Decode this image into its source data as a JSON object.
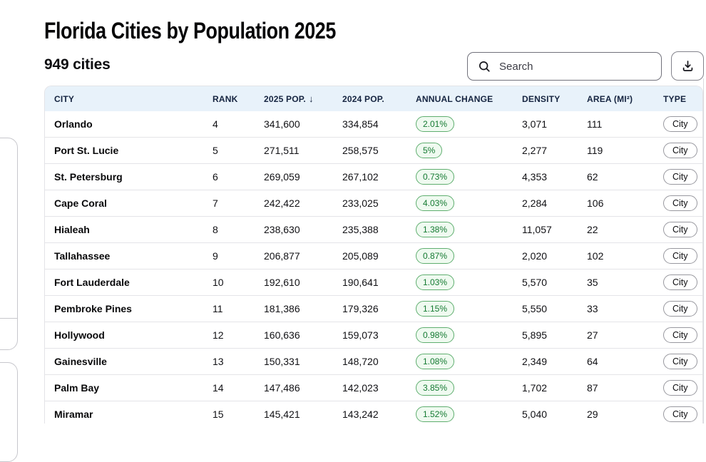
{
  "page": {
    "title": "Florida Cities by Population 2025",
    "count_label": "949 cities"
  },
  "toolbar": {
    "search_placeholder": "Search",
    "search_icon": "search-icon",
    "download_icon": "download-icon"
  },
  "colors": {
    "header_bg": "#e8f2fa",
    "header_text": "#152440",
    "badge_green_bg": "#effaf0",
    "badge_green_border": "#5fae6f",
    "badge_green_text": "#147a31",
    "row_border": "#e4e4e8",
    "type_border": "#98989f"
  },
  "table": {
    "columns": [
      "CITY",
      "RANK",
      "2025 POP.",
      "2024 POP.",
      "ANNUAL CHANGE",
      "DENSITY",
      "AREA (MI²)",
      "TYPE"
    ],
    "sort_column": "2025 POP.",
    "sort_icon": "↓",
    "rows": [
      {
        "city": "Orlando",
        "rank": "4",
        "pop2025": "341,600",
        "pop2024": "334,854",
        "change": "2.01%",
        "density": "3,071",
        "area": "111",
        "type": "City"
      },
      {
        "city": "Port St. Lucie",
        "rank": "5",
        "pop2025": "271,511",
        "pop2024": "258,575",
        "change": "5%",
        "density": "2,277",
        "area": "119",
        "type": "City"
      },
      {
        "city": "St. Petersburg",
        "rank": "6",
        "pop2025": "269,059",
        "pop2024": "267,102",
        "change": "0.73%",
        "density": "4,353",
        "area": "62",
        "type": "City"
      },
      {
        "city": "Cape Coral",
        "rank": "7",
        "pop2025": "242,422",
        "pop2024": "233,025",
        "change": "4.03%",
        "density": "2,284",
        "area": "106",
        "type": "City"
      },
      {
        "city": "Hialeah",
        "rank": "8",
        "pop2025": "238,630",
        "pop2024": "235,388",
        "change": "1.38%",
        "density": "11,057",
        "area": "22",
        "type": "City"
      },
      {
        "city": "Tallahassee",
        "rank": "9",
        "pop2025": "206,877",
        "pop2024": "205,089",
        "change": "0.87%",
        "density": "2,020",
        "area": "102",
        "type": "City"
      },
      {
        "city": "Fort Lauderdale",
        "rank": "10",
        "pop2025": "192,610",
        "pop2024": "190,641",
        "change": "1.03%",
        "density": "5,570",
        "area": "35",
        "type": "City"
      },
      {
        "city": "Pembroke Pines",
        "rank": "11",
        "pop2025": "181,386",
        "pop2024": "179,326",
        "change": "1.15%",
        "density": "5,550",
        "area": "33",
        "type": "City"
      },
      {
        "city": "Hollywood",
        "rank": "12",
        "pop2025": "160,636",
        "pop2024": "159,073",
        "change": "0.98%",
        "density": "5,895",
        "area": "27",
        "type": "City"
      },
      {
        "city": "Gainesville",
        "rank": "13",
        "pop2025": "150,331",
        "pop2024": "148,720",
        "change": "1.08%",
        "density": "2,349",
        "area": "64",
        "type": "City"
      },
      {
        "city": "Palm Bay",
        "rank": "14",
        "pop2025": "147,486",
        "pop2024": "142,023",
        "change": "3.85%",
        "density": "1,702",
        "area": "87",
        "type": "City"
      },
      {
        "city": "Miramar",
        "rank": "15",
        "pop2025": "145,421",
        "pop2024": "143,242",
        "change": "1.52%",
        "density": "5,040",
        "area": "29",
        "type": "City"
      }
    ]
  }
}
